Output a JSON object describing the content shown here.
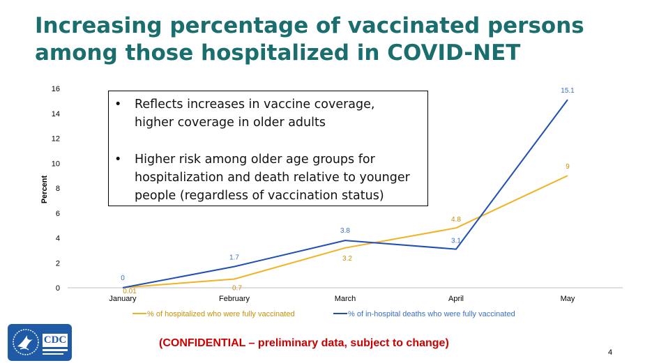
{
  "slide": {
    "title_line1": "Increasing percentage of vaccinated persons",
    "title_line2": "among those hospitalized in COVID-NET",
    "bullets": [
      "Reflects increases in vaccine coverage, higher coverage in older adults",
      "Higher risk among older age groups for hospitalization and death relative to younger people (regardless of vaccination status)"
    ],
    "bullet_symbol": "•",
    "confidential": "(CONFIDENTIAL – preliminary data, subject to change)",
    "page_number": "4",
    "logo_text": "CDC"
  },
  "colors": {
    "title": "#1a6e6e",
    "hospitalized": "#f0b323",
    "deaths": "#1f4fb5",
    "confidential": "#cc0000",
    "logo_bg": "#1f5aa6"
  },
  "chart_data": {
    "type": "line",
    "categories": [
      "January",
      "February",
      "March",
      "April",
      "May"
    ],
    "series": [
      {
        "name": "% of hospitalized who were fully vaccinated",
        "values": [
          0.01,
          0.7,
          3.2,
          4.8,
          9
        ],
        "labels": [
          "0.01",
          "0.7",
          "3.2",
          "4.8",
          "9"
        ],
        "color": "#f0b323",
        "label_color": "#c8900a"
      },
      {
        "name": "% of in-hospital deaths who were fully vaccinated",
        "values": [
          0,
          1.7,
          3.8,
          3.1,
          15.1
        ],
        "labels": [
          "0",
          "1.7",
          "3.8",
          "3.1",
          "15.1"
        ],
        "color": "#1f4fb5",
        "label_color": "#3a6fc9"
      }
    ],
    "ylabel": "Percent",
    "xlabel": "",
    "ylim": [
      0,
      16
    ],
    "yticks": [
      "0",
      "2",
      "4",
      "6",
      "8",
      "10",
      "12",
      "14",
      "16"
    ],
    "legend_position": "bottom",
    "grid": false
  }
}
